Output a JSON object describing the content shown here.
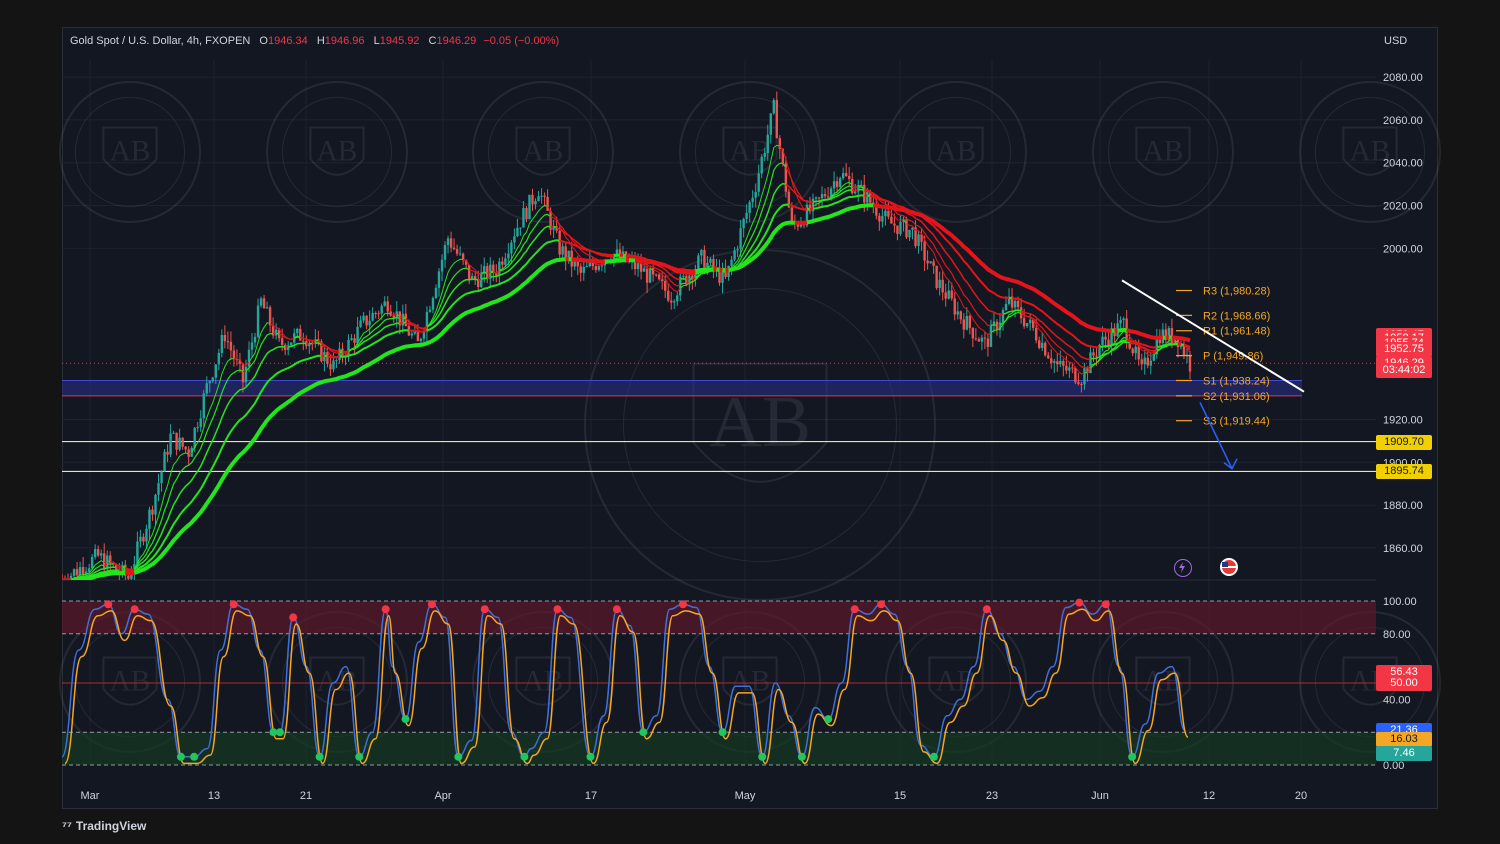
{
  "header": {
    "symbol": "Gold Spot / U.S. Dollar, 4h, FXOPEN",
    "o_label": "O",
    "o_value": "1946.34",
    "h_label": "H",
    "h_value": "1946.96",
    "l_label": "L",
    "l_value": "1945.92",
    "c_label": "C",
    "c_value": "1946.29",
    "change": "−0.05 (−0.00%)"
  },
  "currency": "USD",
  "brand": "TradingView",
  "watermark": "AB",
  "colors": {
    "background": "#131722",
    "up_candle": "#26a69a",
    "down_candle": "#ef5350",
    "ema_green": "#22e51b",
    "ema_red": "#e5141b",
    "pivot_orange": "#f5a623",
    "support_yellow": "#f0e68c",
    "zone_blue": "#2b2f8c",
    "trendline": "#ffffff",
    "stoch_blue": "#3f6fd8",
    "stoch_orange": "#f5a623"
  },
  "chart_data": [
    {
      "type": "candlestick",
      "title": "Gold Spot / U.S. Dollar, 4h, FXOPEN",
      "ylim": [
        1845,
        2088
      ],
      "y_ticks": [
        "2080.00",
        "2060.00",
        "2040.00",
        "2020.00",
        "2000.00",
        "1920.00",
        "1900.00",
        "1880.00",
        "1860.00"
      ],
      "x_ticks": [
        "Mar",
        "13",
        "21",
        "Apr",
        "17",
        "May",
        "15",
        "23",
        "Jun",
        "12",
        "20"
      ],
      "close_path": [
        [
          0,
          1845
        ],
        [
          12,
          1856
        ],
        [
          22,
          1846
        ],
        [
          30,
          1880
        ],
        [
          36,
          1912
        ],
        [
          42,
          1905
        ],
        [
          48,
          1935
        ],
        [
          54,
          1960
        ],
        [
          60,
          1938
        ],
        [
          66,
          1975
        ],
        [
          72,
          1955
        ],
        [
          80,
          1960
        ],
        [
          90,
          1945
        ],
        [
          100,
          1965
        ],
        [
          108,
          1975
        ],
        [
          118,
          1955
        ],
        [
          128,
          2005
        ],
        [
          136,
          1985
        ],
        [
          144,
          1990
        ],
        [
          150,
          2008
        ],
        [
          158,
          2028
        ],
        [
          165,
          2000
        ],
        [
          172,
          1988
        ],
        [
          182,
          1998
        ],
        [
          192,
          1990
        ],
        [
          202,
          1978
        ],
        [
          212,
          1995
        ],
        [
          220,
          1985
        ],
        [
          230,
          2030
        ],
        [
          236,
          2065
        ],
        [
          242,
          2010
        ],
        [
          250,
          2020
        ],
        [
          258,
          2035
        ],
        [
          266,
          2025
        ],
        [
          274,
          2012
        ],
        [
          282,
          2008
        ],
        [
          290,
          1985
        ],
        [
          298,
          1968
        ],
        [
          306,
          1955
        ],
        [
          314,
          1975
        ],
        [
          322,
          1962
        ],
        [
          330,
          1945
        ],
        [
          338,
          1940
        ],
        [
          344,
          1955
        ],
        [
          352,
          1965
        ],
        [
          358,
          1942
        ],
        [
          364,
          1960
        ],
        [
          370,
          1958
        ],
        [
          374,
          1946
        ]
      ],
      "indicators": [
        "EMA ribbon (green)",
        "EMA ribbon (red)"
      ],
      "pivot_levels": [
        {
          "label": "R3 (1,980.28)",
          "value": 1980.28
        },
        {
          "label": "R2 (1,968.66)",
          "value": 1968.66
        },
        {
          "label": "R1 (1,961.48)",
          "value": 1961.48
        },
        {
          "label": "P (1,949.86)",
          "value": 1949.86
        },
        {
          "label": "S1 (1,938.24)",
          "value": 1938.24
        },
        {
          "label": "S2 (1,931.06)",
          "value": 1931.06
        },
        {
          "label": "S3 (1,919.44)",
          "value": 1919.44
        }
      ],
      "horizontal_levels": [
        1909.7,
        1895.74
      ],
      "support_zone": [
        1931.06,
        1938.24
      ],
      "trendline": {
        "from": [
          1957,
          1985
        ],
        "to": [
          1981,
          1933
        ]
      },
      "projection_arrow": {
        "from": [
          1978,
          1928
        ],
        "to": [
          1982,
          1897
        ]
      },
      "price_labels": [
        {
          "value": "1959.47",
          "price": 1959.47,
          "color": "#f23645"
        },
        {
          "value": "1958.17",
          "price": 1958.17,
          "color": "#f23645"
        },
        {
          "value": "1955.74",
          "price": 1955.74,
          "color": "#f23645"
        },
        {
          "value": "1952.75",
          "price": 1952.75,
          "color": "#f23645"
        },
        {
          "value": "1946.29",
          "price": 1946.29,
          "color": "#f23645"
        },
        {
          "value": "03:44:02",
          "price": 1943.2,
          "color": "#f23645"
        },
        {
          "value": "1909.70",
          "price": 1909.7,
          "color": "#f0d000"
        },
        {
          "value": "1895.74",
          "price": 1895.74,
          "color": "#f0d000"
        }
      ]
    },
    {
      "type": "line",
      "title": "",
      "ylim": [
        0,
        100
      ],
      "y_ticks": [
        "100.00",
        "80.00",
        "40.00",
        "0.00"
      ],
      "bands": {
        "overbought": 80,
        "mid": 50,
        "oversold": 20
      },
      "series": [
        {
          "name": "",
          "color": "#3f6fd8"
        },
        {
          "name": "",
          "color": "#f5a623"
        }
      ],
      "oscillator": [
        [
          0,
          5
        ],
        [
          5,
          70
        ],
        [
          10,
          95
        ],
        [
          14,
          98
        ],
        [
          18,
          80
        ],
        [
          22,
          95
        ],
        [
          26,
          92
        ],
        [
          32,
          40
        ],
        [
          36,
          5
        ],
        [
          40,
          5
        ],
        [
          44,
          10
        ],
        [
          48,
          70
        ],
        [
          52,
          98
        ],
        [
          56,
          95
        ],
        [
          60,
          70
        ],
        [
          64,
          20
        ],
        [
          66,
          20
        ],
        [
          70,
          90
        ],
        [
          74,
          60
        ],
        [
          78,
          5
        ],
        [
          82,
          50
        ],
        [
          86,
          60
        ],
        [
          90,
          5
        ],
        [
          94,
          20
        ],
        [
          98,
          95
        ],
        [
          100,
          60
        ],
        [
          104,
          28
        ],
        [
          108,
          75
        ],
        [
          112,
          98
        ],
        [
          116,
          90
        ],
        [
          120,
          5
        ],
        [
          124,
          15
        ],
        [
          128,
          95
        ],
        [
          132,
          90
        ],
        [
          136,
          20
        ],
        [
          140,
          5
        ],
        [
          142,
          10
        ],
        [
          146,
          20
        ],
        [
          150,
          95
        ],
        [
          154,
          90
        ],
        [
          160,
          5
        ],
        [
          164,
          30
        ],
        [
          168,
          95
        ],
        [
          172,
          85
        ],
        [
          176,
          20
        ],
        [
          180,
          30
        ],
        [
          184,
          95
        ],
        [
          188,
          98
        ],
        [
          192,
          96
        ],
        [
          196,
          60
        ],
        [
          200,
          20
        ],
        [
          204,
          48
        ],
        [
          208,
          48
        ],
        [
          212,
          5
        ],
        [
          216,
          50
        ],
        [
          220,
          30
        ],
        [
          224,
          5
        ],
        [
          228,
          35
        ],
        [
          232,
          28
        ],
        [
          236,
          50
        ],
        [
          240,
          95
        ],
        [
          244,
          92
        ],
        [
          248,
          98
        ],
        [
          252,
          92
        ],
        [
          256,
          60
        ],
        [
          260,
          12
        ],
        [
          264,
          5
        ],
        [
          268,
          30
        ],
        [
          272,
          40
        ],
        [
          276,
          60
        ],
        [
          280,
          95
        ],
        [
          284,
          80
        ],
        [
          288,
          60
        ],
        [
          292,
          40
        ],
        [
          296,
          45
        ],
        [
          300,
          60
        ],
        [
          304,
          96
        ],
        [
          308,
          99
        ],
        [
          312,
          92
        ],
        [
          316,
          98
        ],
        [
          320,
          60
        ],
        [
          324,
          5
        ],
        [
          328,
          25
        ],
        [
          332,
          56
        ],
        [
          336,
          60
        ],
        [
          340,
          21
        ]
      ],
      "price_labels": [
        {
          "value": "56.43",
          "level": 56.43,
          "color": "#f23645"
        },
        {
          "value": "50.00",
          "level": 50.0,
          "color": "#f23645"
        },
        {
          "value": "21.36",
          "level": 21.36,
          "color": "#2962ff"
        },
        {
          "value": "16.03",
          "level": 16.03,
          "color": "#f5a623"
        },
        {
          "value": "7.46",
          "level": 7.46,
          "color": "#26a69a"
        }
      ]
    }
  ]
}
